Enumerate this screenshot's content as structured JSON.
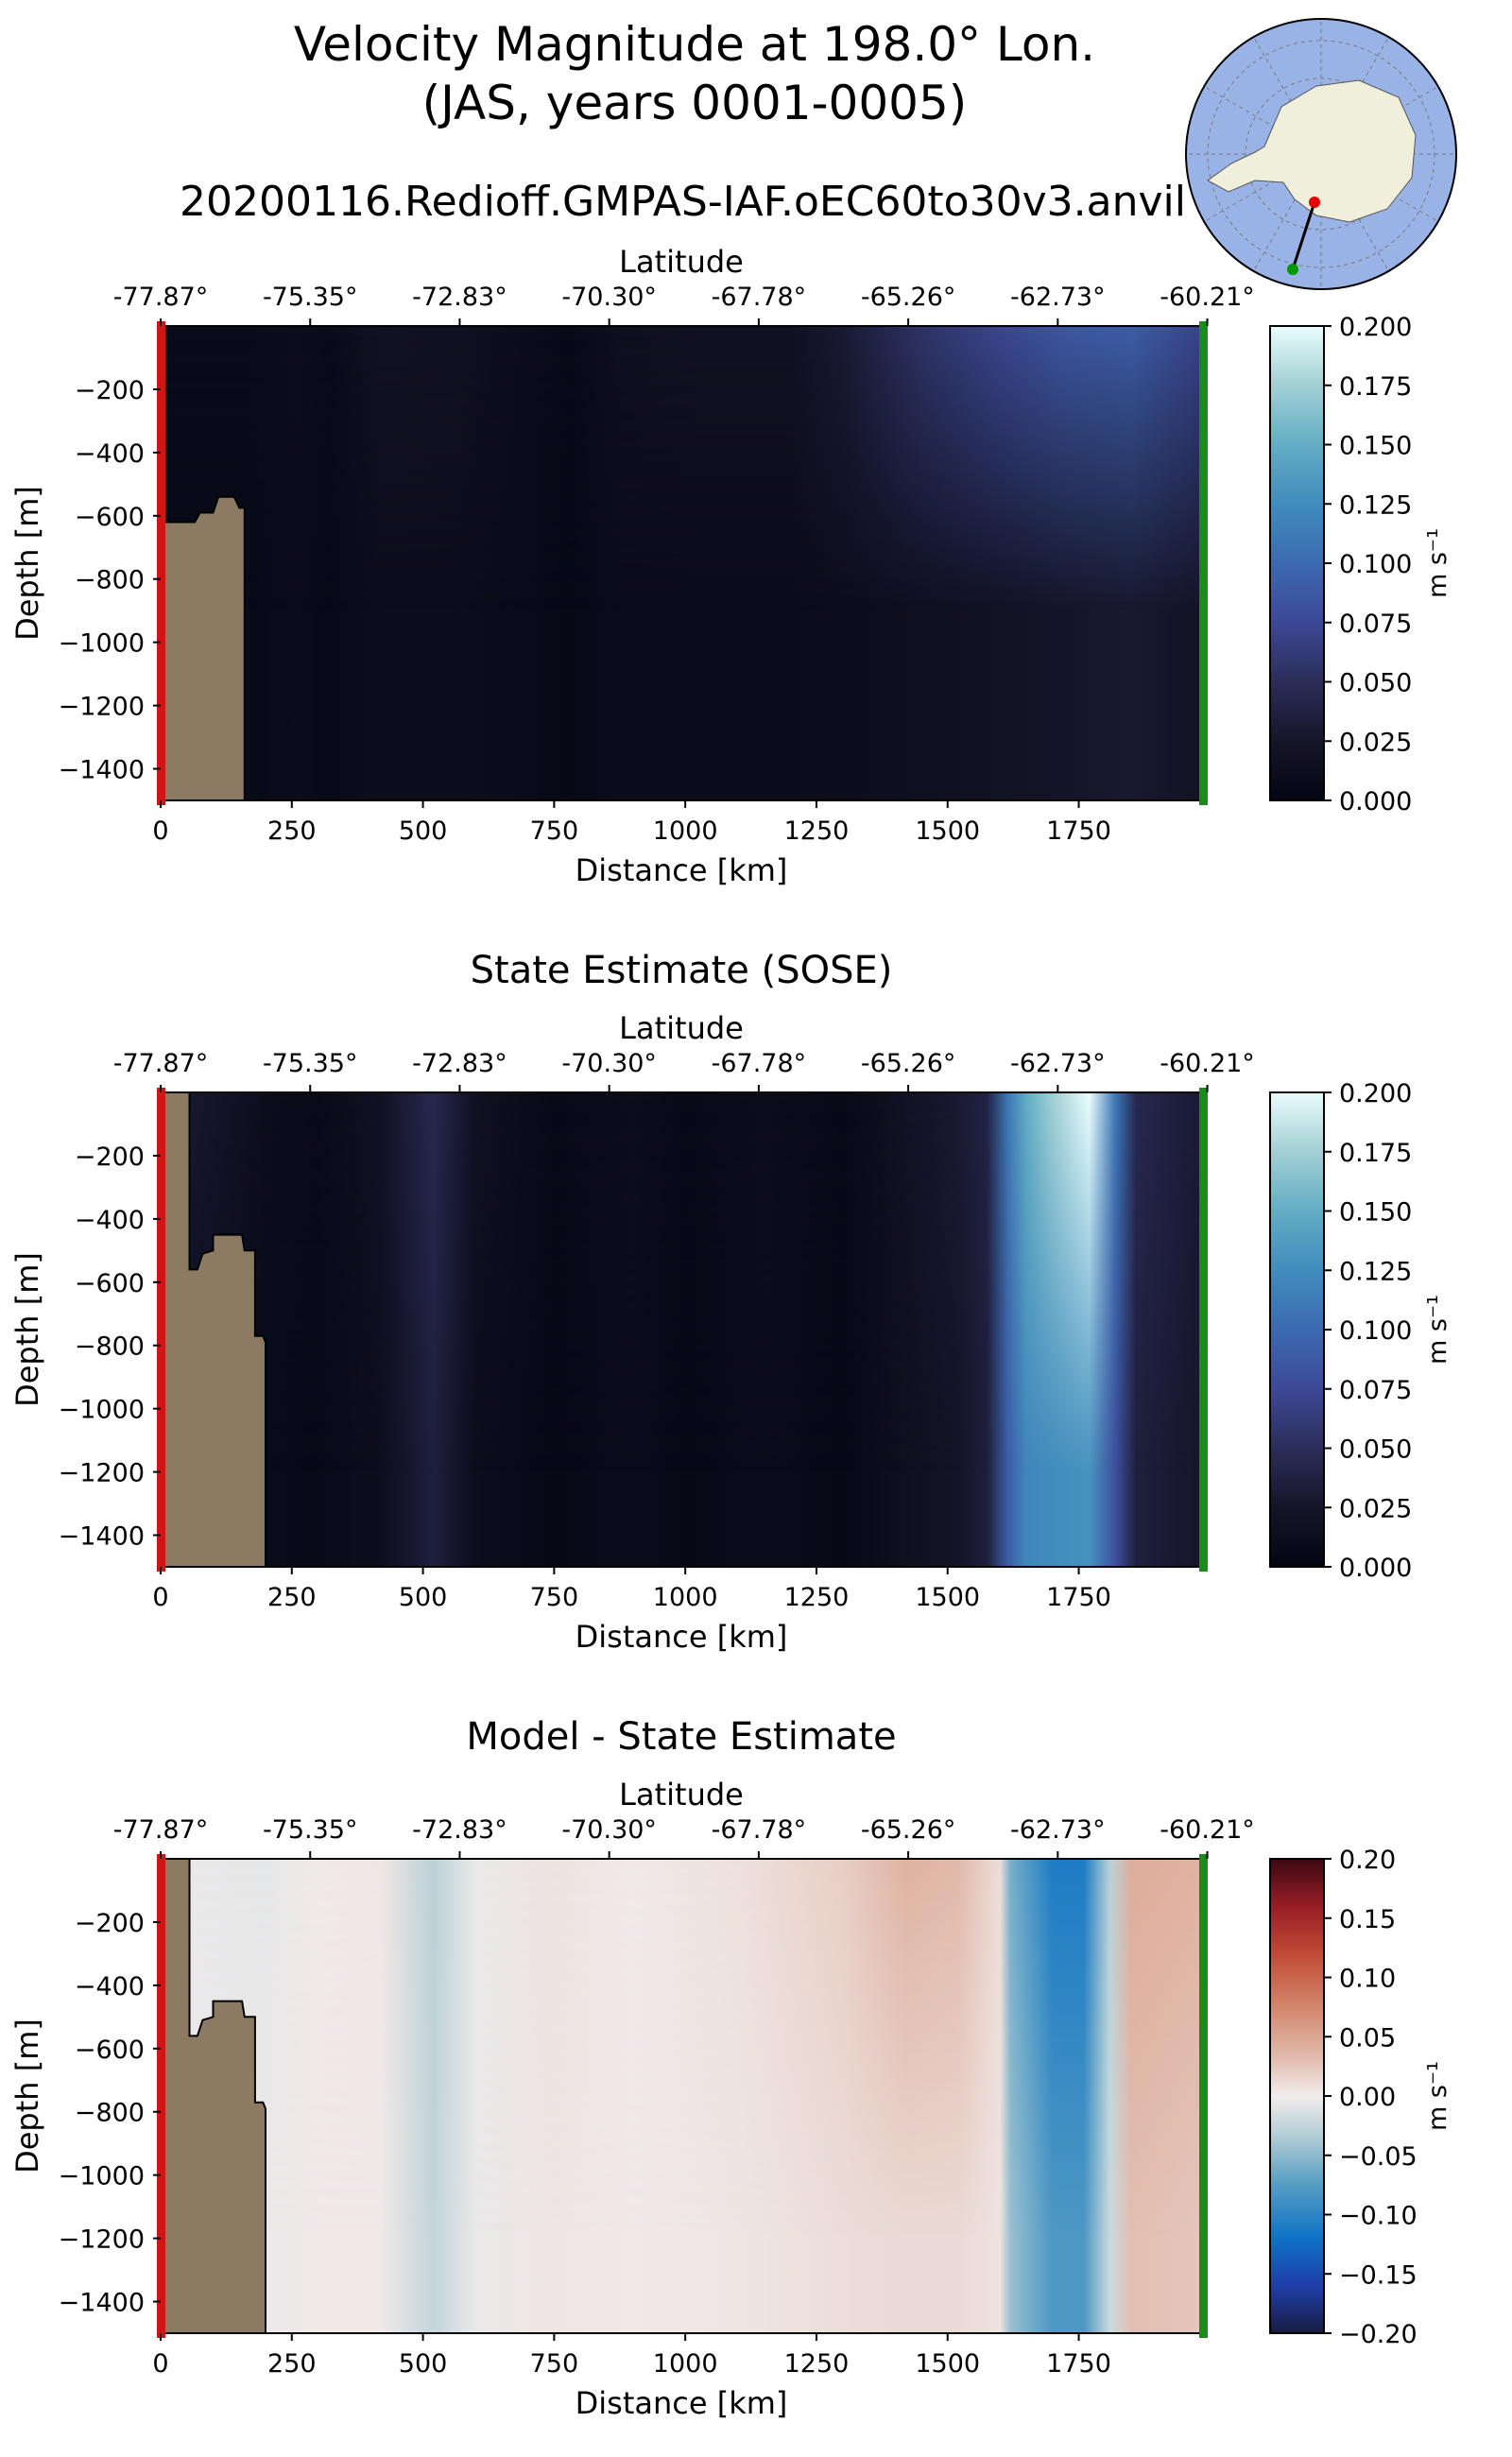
{
  "figure": {
    "title_line1": "Velocity Magnitude at 198.0° Lon.",
    "title_line2": "(JAS, years 0001-0005)",
    "run_name": "20200116.Redioff.GMPAS-IAF.oEC60to30v3.anvil"
  },
  "inset_map": {
    "ocean_color": "#99b3e6",
    "land_color": "#efefdb",
    "transect_start_color": "#e60000",
    "transect_end_color": "#009900"
  },
  "colors": {
    "topography": "#8c7b62",
    "start_marker": "#d11515",
    "end_marker": "#1a8c1a"
  },
  "chart_data": [
    {
      "type": "heatmap",
      "title": "",
      "xlabel": "Distance [km]",
      "ylabel": "Depth [m]",
      "top_axis_label": "Latitude",
      "top_ticks": [
        "-77.87°",
        "-75.35°",
        "-72.83°",
        "-70.30°",
        "-67.78°",
        "-65.26°",
        "-62.73°",
        "-60.21°"
      ],
      "top_tick_distance_km": [
        0,
        285,
        570,
        855,
        1140,
        1425,
        1710,
        1995
      ],
      "xlim": [
        0,
        1985
      ],
      "ylim": [
        -1500,
        0
      ],
      "xticks": [
        0,
        250,
        500,
        750,
        1000,
        1250,
        1500,
        1750
      ],
      "yticks": [
        -200,
        -400,
        -600,
        -800,
        -1000,
        -1200,
        -1400
      ],
      "colorbar": {
        "label": "m s⁻¹",
        "range": [
          0,
          0.2
        ],
        "ticks": [
          "0.200",
          "0.175",
          "0.150",
          "0.125",
          "0.100",
          "0.075",
          "0.050",
          "0.025",
          "0.000"
        ],
        "colormap": "ice"
      },
      "topography_km_depth": [
        [
          0,
          -1500
        ],
        [
          0,
          -620
        ],
        [
          65,
          -620
        ],
        [
          75,
          -590
        ],
        [
          100,
          -590
        ],
        [
          110,
          -540
        ],
        [
          140,
          -540
        ],
        [
          150,
          -575
        ],
        [
          160,
          -575
        ],
        [
          160,
          -1500
        ]
      ],
      "field": {
        "columns": [
          [
            0,
            0.008,
            0.006
          ],
          [
            160,
            0.008,
            0.006
          ],
          [
            260,
            0.012,
            0.009
          ],
          [
            320,
            0.008,
            0.006
          ],
          [
            420,
            0.02,
            0.012
          ],
          [
            560,
            0.018,
            0.012
          ],
          [
            700,
            0.01,
            0.008
          ],
          [
            780,
            0.006,
            0.005
          ],
          [
            880,
            0.016,
            0.01
          ],
          [
            1050,
            0.018,
            0.01
          ],
          [
            1200,
            0.018,
            0.01
          ],
          [
            1300,
            0.03,
            0.012
          ],
          [
            1450,
            0.055,
            0.015
          ],
          [
            1600,
            0.072,
            0.02
          ],
          [
            1720,
            0.085,
            0.025
          ],
          [
            1850,
            0.09,
            0.028
          ],
          [
            1985,
            0.07,
            0.022
          ]
        ],
        "surface_decay_depth": 900
      }
    },
    {
      "type": "heatmap",
      "title": "State Estimate (SOSE)",
      "xlabel": "Distance [km]",
      "ylabel": "Depth [m]",
      "top_axis_label": "Latitude",
      "top_ticks": [
        "-77.87°",
        "-75.35°",
        "-72.83°",
        "-70.30°",
        "-67.78°",
        "-65.26°",
        "-62.73°",
        "-60.21°"
      ],
      "top_tick_distance_km": [
        0,
        285,
        570,
        855,
        1140,
        1425,
        1710,
        1995
      ],
      "xlim": [
        0,
        1985
      ],
      "ylim": [
        -1500,
        0
      ],
      "xticks": [
        0,
        250,
        500,
        750,
        1000,
        1250,
        1500,
        1750
      ],
      "yticks": [
        -200,
        -400,
        -600,
        -800,
        -1000,
        -1200,
        -1400
      ],
      "colorbar": {
        "label": "m s⁻¹",
        "range": [
          0,
          0.2
        ],
        "ticks": [
          "0.200",
          "0.175",
          "0.150",
          "0.125",
          "0.100",
          "0.075",
          "0.050",
          "0.025",
          "0.000"
        ],
        "colormap": "ice"
      },
      "topography_km_depth": [
        [
          0,
          -1500
        ],
        [
          0,
          0
        ],
        [
          55,
          0
        ],
        [
          55,
          -560
        ],
        [
          70,
          -560
        ],
        [
          80,
          -510
        ],
        [
          100,
          -500
        ],
        [
          100,
          -450
        ],
        [
          155,
          -450
        ],
        [
          160,
          -500
        ],
        [
          180,
          -500
        ],
        [
          180,
          -770
        ],
        [
          195,
          -770
        ],
        [
          200,
          -790
        ],
        [
          200,
          -1500
        ]
      ],
      "field": {
        "columns": [
          [
            0,
            0.01,
            0.008
          ],
          [
            60,
            0.028,
            0.012
          ],
          [
            200,
            0.012,
            0.008
          ],
          [
            300,
            0.008,
            0.006
          ],
          [
            420,
            0.02,
            0.014
          ],
          [
            520,
            0.045,
            0.035
          ],
          [
            600,
            0.018,
            0.012
          ],
          [
            750,
            0.006,
            0.005
          ],
          [
            900,
            0.012,
            0.01
          ],
          [
            1000,
            0.006,
            0.005
          ],
          [
            1150,
            0.012,
            0.01
          ],
          [
            1300,
            0.006,
            0.005
          ],
          [
            1420,
            0.02,
            0.016
          ],
          [
            1520,
            0.03,
            0.024
          ],
          [
            1575,
            0.04,
            0.034
          ],
          [
            1615,
            0.11,
            0.09
          ],
          [
            1650,
            0.15,
            0.12
          ],
          [
            1700,
            0.175,
            0.125
          ],
          [
            1770,
            0.2,
            0.13
          ],
          [
            1820,
            0.11,
            0.08
          ],
          [
            1860,
            0.045,
            0.035
          ],
          [
            1985,
            0.03,
            0.025
          ]
        ],
        "surface_decay_depth": 1200
      }
    },
    {
      "type": "heatmap",
      "title": "Model - State Estimate",
      "xlabel": "Distance [km]",
      "ylabel": "Depth [m]",
      "top_axis_label": "Latitude",
      "top_ticks": [
        "-77.87°",
        "-75.35°",
        "-72.83°",
        "-70.30°",
        "-67.78°",
        "-65.26°",
        "-62.73°",
        "-60.21°"
      ],
      "top_tick_distance_km": [
        0,
        285,
        570,
        855,
        1140,
        1425,
        1710,
        1995
      ],
      "xlim": [
        0,
        1985
      ],
      "ylim": [
        -1500,
        0
      ],
      "xticks": [
        0,
        250,
        500,
        750,
        1000,
        1250,
        1500,
        1750
      ],
      "yticks": [
        -200,
        -400,
        -600,
        -800,
        -1000,
        -1200,
        -1400
      ],
      "colorbar": {
        "label": "m s⁻¹",
        "range": [
          -0.2,
          0.2
        ],
        "ticks": [
          "0.20",
          "0.15",
          "0.10",
          "0.05",
          "0.00",
          "−0.05",
          "−0.10",
          "−0.15",
          "−0.20"
        ],
        "colormap": "balance"
      },
      "topography_km_depth": [
        [
          0,
          -1500
        ],
        [
          0,
          0
        ],
        [
          55,
          0
        ],
        [
          55,
          -560
        ],
        [
          70,
          -560
        ],
        [
          80,
          -510
        ],
        [
          100,
          -500
        ],
        [
          100,
          -450
        ],
        [
          155,
          -450
        ],
        [
          160,
          -500
        ],
        [
          180,
          -500
        ],
        [
          180,
          -770
        ],
        [
          195,
          -770
        ],
        [
          200,
          -790
        ],
        [
          200,
          -1500
        ]
      ],
      "field": {
        "columns": [
          [
            0,
            -0.004,
            -0.003
          ],
          [
            200,
            -0.006,
            -0.003
          ],
          [
            300,
            0.002,
            0.002
          ],
          [
            420,
            0.004,
            0.002
          ],
          [
            520,
            -0.03,
            -0.025
          ],
          [
            600,
            -0.004,
            -0.004
          ],
          [
            750,
            0.006,
            0.004
          ],
          [
            900,
            0.002,
            0.002
          ],
          [
            1100,
            0.008,
            0.004
          ],
          [
            1300,
            0.02,
            0.01
          ],
          [
            1420,
            0.04,
            0.012
          ],
          [
            1520,
            0.035,
            0.012
          ],
          [
            1600,
            0.01,
            0.006
          ],
          [
            1620,
            -0.06,
            -0.045
          ],
          [
            1700,
            -0.11,
            -0.08
          ],
          [
            1760,
            -0.11,
            -0.08
          ],
          [
            1810,
            -0.03,
            -0.02
          ],
          [
            1850,
            0.045,
            0.03
          ],
          [
            1985,
            0.04,
            0.025
          ]
        ],
        "surface_decay_depth": 1200
      }
    }
  ]
}
